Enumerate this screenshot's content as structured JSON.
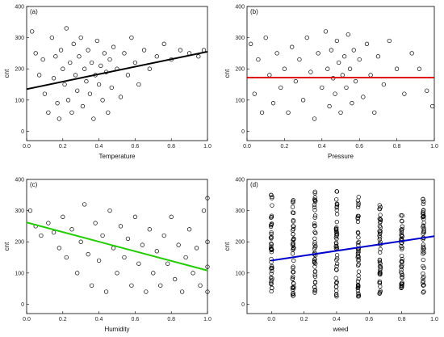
{
  "chart_data": [
    {
      "panel_label": "(a)",
      "type": "scatter",
      "xlabel": "Temperature",
      "ylabel": "cnt",
      "xlim": [
        0.0,
        1.0
      ],
      "ylim": [
        -30,
        400
      ],
      "xticks": [
        "0.0",
        "0.2",
        "0.4",
        "0.6",
        "0.8",
        "1.0"
      ],
      "yticks": [
        "0",
        "100",
        "200",
        "300",
        "400"
      ],
      "marker": "open-circle",
      "fit_line": {
        "x": [
          0.0,
          1.0
        ],
        "y": [
          135,
          255
        ],
        "color": "#000000"
      },
      "points": [
        [
          0.03,
          320
        ],
        [
          0.05,
          250
        ],
        [
          0.07,
          180
        ],
        [
          0.09,
          230
        ],
        [
          0.1,
          120
        ],
        [
          0.12,
          60
        ],
        [
          0.14,
          300
        ],
        [
          0.15,
          170
        ],
        [
          0.16,
          240
        ],
        [
          0.17,
          90
        ],
        [
          0.18,
          40
        ],
        [
          0.19,
          260
        ],
        [
          0.2,
          200
        ],
        [
          0.21,
          150
        ],
        [
          0.22,
          330
        ],
        [
          0.23,
          100
        ],
        [
          0.24,
          220
        ],
        [
          0.25,
          60
        ],
        [
          0.26,
          280
        ],
        [
          0.27,
          180
        ],
        [
          0.28,
          130
        ],
        [
          0.29,
          240
        ],
        [
          0.3,
          300
        ],
        [
          0.31,
          80
        ],
        [
          0.32,
          200
        ],
        [
          0.33,
          160
        ],
        [
          0.34,
          260
        ],
        [
          0.35,
          120
        ],
        [
          0.36,
          220
        ],
        [
          0.37,
          40
        ],
        [
          0.38,
          180
        ],
        [
          0.39,
          290
        ],
        [
          0.4,
          150
        ],
        [
          0.41,
          210
        ],
        [
          0.42,
          100
        ],
        [
          0.43,
          250
        ],
        [
          0.44,
          190
        ],
        [
          0.45,
          60
        ],
        [
          0.46,
          230
        ],
        [
          0.47,
          140
        ],
        [
          0.48,
          270
        ],
        [
          0.5,
          200
        ],
        [
          0.52,
          110
        ],
        [
          0.54,
          250
        ],
        [
          0.56,
          180
        ],
        [
          0.58,
          300
        ],
        [
          0.6,
          220
        ],
        [
          0.62,
          150
        ],
        [
          0.65,
          260
        ],
        [
          0.68,
          200
        ],
        [
          0.72,
          240
        ],
        [
          0.76,
          280
        ],
        [
          0.8,
          230
        ],
        [
          0.85,
          260
        ],
        [
          0.9,
          250
        ],
        [
          0.95,
          240
        ],
        [
          0.98,
          260
        ]
      ]
    },
    {
      "panel_label": "(b)",
      "type": "scatter",
      "xlabel": "Pressure",
      "ylabel": "cnt",
      "xlim": [
        0.0,
        1.0
      ],
      "ylim": [
        -30,
        400
      ],
      "xticks": [
        "0.0",
        "0.2",
        "0.4",
        "0.6",
        "0.8",
        "1.0"
      ],
      "yticks": [
        "0",
        "100",
        "200",
        "300",
        "400"
      ],
      "marker": "open-circle",
      "fit_line": {
        "x": [
          0.0,
          1.0
        ],
        "y": [
          172,
          172
        ],
        "color": "#e00000"
      },
      "points": [
        [
          0.02,
          280
        ],
        [
          0.04,
          120
        ],
        [
          0.06,
          230
        ],
        [
          0.08,
          60
        ],
        [
          0.1,
          300
        ],
        [
          0.12,
          180
        ],
        [
          0.14,
          90
        ],
        [
          0.16,
          250
        ],
        [
          0.18,
          140
        ],
        [
          0.2,
          200
        ],
        [
          0.22,
          60
        ],
        [
          0.24,
          270
        ],
        [
          0.26,
          160
        ],
        [
          0.28,
          230
        ],
        [
          0.3,
          100
        ],
        [
          0.32,
          300
        ],
        [
          0.34,
          190
        ],
        [
          0.36,
          40
        ],
        [
          0.38,
          250
        ],
        [
          0.4,
          140
        ],
        [
          0.42,
          320
        ],
        [
          0.43,
          200
        ],
        [
          0.44,
          80
        ],
        [
          0.45,
          260
        ],
        [
          0.46,
          170
        ],
        [
          0.47,
          120
        ],
        [
          0.48,
          290
        ],
        [
          0.49,
          220
        ],
        [
          0.5,
          60
        ],
        [
          0.51,
          180
        ],
        [
          0.52,
          240
        ],
        [
          0.53,
          140
        ],
        [
          0.54,
          310
        ],
        [
          0.55,
          200
        ],
        [
          0.56,
          90
        ],
        [
          0.57,
          260
        ],
        [
          0.58,
          160
        ],
        [
          0.6,
          230
        ],
        [
          0.62,
          110
        ],
        [
          0.64,
          280
        ],
        [
          0.66,
          180
        ],
        [
          0.68,
          60
        ],
        [
          0.7,
          240
        ],
        [
          0.73,
          150
        ],
        [
          0.76,
          290
        ],
        [
          0.8,
          200
        ],
        [
          0.84,
          120
        ],
        [
          0.88,
          250
        ],
        [
          0.92,
          200
        ],
        [
          0.96,
          130
        ],
        [
          0.99,
          80
        ]
      ]
    },
    {
      "panel_label": "(c)",
      "type": "scatter",
      "xlabel": "Humidity",
      "ylabel": "cnt",
      "xlim": [
        0.0,
        1.0
      ],
      "ylim": [
        -30,
        400
      ],
      "xticks": [
        "0.0",
        "0.2",
        "0.4",
        "0.6",
        "0.8",
        "1.0"
      ],
      "yticks": [
        "0",
        "100",
        "200",
        "300",
        "400"
      ],
      "marker": "open-circle",
      "fit_line": {
        "x": [
          0.0,
          1.0
        ],
        "y": [
          262,
          108
        ],
        "color": "#22cc00"
      },
      "points": [
        [
          0.02,
          300
        ],
        [
          0.05,
          250
        ],
        [
          0.08,
          220
        ],
        [
          0.12,
          260
        ],
        [
          0.15,
          230
        ],
        [
          0.18,
          180
        ],
        [
          0.2,
          280
        ],
        [
          0.22,
          150
        ],
        [
          0.25,
          240
        ],
        [
          0.28,
          100
        ],
        [
          0.3,
          200
        ],
        [
          0.32,
          320
        ],
        [
          0.34,
          160
        ],
        [
          0.36,
          60
        ],
        [
          0.38,
          260
        ],
        [
          0.4,
          140
        ],
        [
          0.42,
          220
        ],
        [
          0.44,
          40
        ],
        [
          0.46,
          300
        ],
        [
          0.48,
          180
        ],
        [
          0.5,
          100
        ],
        [
          0.52,
          250
        ],
        [
          0.54,
          150
        ],
        [
          0.56,
          210
        ],
        [
          0.58,
          60
        ],
        [
          0.6,
          280
        ],
        [
          0.62,
          130
        ],
        [
          0.64,
          190
        ],
        [
          0.66,
          40
        ],
        [
          0.68,
          240
        ],
        [
          0.7,
          100
        ],
        [
          0.72,
          170
        ],
        [
          0.74,
          60
        ],
        [
          0.76,
          220
        ],
        [
          0.78,
          130
        ],
        [
          0.8,
          280
        ],
        [
          0.82,
          80
        ],
        [
          0.84,
          190
        ],
        [
          0.86,
          40
        ],
        [
          0.88,
          150
        ],
        [
          0.9,
          240
        ],
        [
          0.92,
          100
        ],
        [
          0.94,
          180
        ],
        [
          0.96,
          60
        ],
        [
          0.98,
          300
        ],
        [
          1.0,
          120
        ],
        [
          1.0,
          40
        ],
        [
          1.0,
          200
        ],
        [
          1.0,
          340
        ]
      ]
    },
    {
      "panel_label": "(d)",
      "type": "scatter",
      "xlabel": "weed",
      "ylabel": "cnt",
      "xlim": [
        -0.15,
        1.0
      ],
      "ylim": [
        -30,
        400
      ],
      "xticks": [
        "0.0",
        "0.2",
        "0.4",
        "0.6",
        "0.8",
        "1.0"
      ],
      "yticks": [
        "0",
        "100",
        "200",
        "300",
        "400"
      ],
      "marker": "open-circle",
      "fit_line": {
        "x": [
          0.0,
          1.0
        ],
        "y": [
          140,
          218
        ],
        "color": "#0000cc"
      },
      "stripes": [
        {
          "x": 0.0,
          "ymin": 25,
          "ymax": 365
        },
        {
          "x": 0.133,
          "ymin": 25,
          "ymax": 365
        },
        {
          "x": 0.267,
          "ymin": 25,
          "ymax": 370
        },
        {
          "x": 0.4,
          "ymin": 25,
          "ymax": 375
        },
        {
          "x": 0.533,
          "ymin": 25,
          "ymax": 355
        },
        {
          "x": 0.667,
          "ymin": 30,
          "ymax": 320
        },
        {
          "x": 0.8,
          "ymin": 35,
          "ymax": 290
        },
        {
          "x": 0.933,
          "ymin": 30,
          "ymax": 345
        }
      ]
    }
  ]
}
